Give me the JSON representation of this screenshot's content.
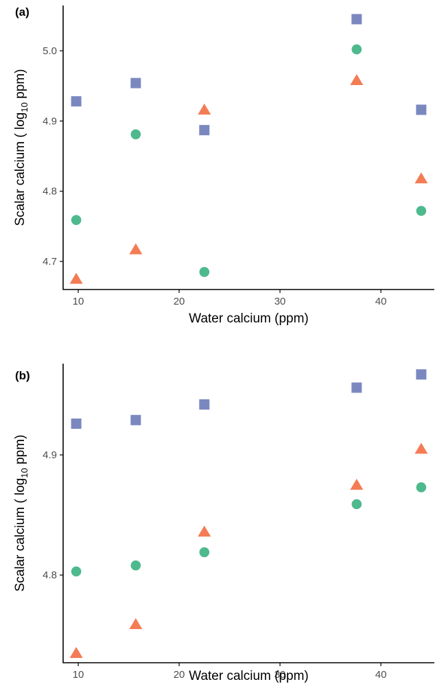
{
  "colors": {
    "square": "#7b88c0",
    "circle": "#4fb98e",
    "triangle": "#f47c55",
    "axis": "#000000",
    "tick_text": "#4d4d4d"
  },
  "chart_data": [
    {
      "type": "scatter",
      "panel_label": "(a)",
      "xlabel": "Water calcium (ppm)",
      "ylabel_main": "Scalar calcium ( log",
      "ylabel_sub": "10",
      "ylabel_end": " ppm)",
      "xlim": [
        8.5,
        45.3
      ],
      "ylim": [
        4.66,
        5.0645
      ],
      "x_ticks": [
        10,
        20,
        30,
        40
      ],
      "y_ticks": [
        4.7,
        4.8,
        4.9,
        5.0
      ],
      "x_tick_labels": [
        "10",
        "20",
        "30",
        "40"
      ],
      "y_tick_labels": [
        "4.7",
        "4.8",
        "4.9",
        "5.0"
      ],
      "grid": false,
      "series": [
        {
          "marker": "square",
          "points": [
            [
              9.8,
              4.928
            ],
            [
              15.7,
              4.954
            ],
            [
              22.5,
              4.887
            ],
            [
              37.6,
              5.045
            ],
            [
              44.0,
              4.916
            ]
          ]
        },
        {
          "marker": "circle",
          "points": [
            [
              9.8,
              4.759
            ],
            [
              15.7,
              4.881
            ],
            [
              22.5,
              4.685
            ],
            [
              37.6,
              5.002
            ],
            [
              44.0,
              4.772
            ]
          ]
        },
        {
          "marker": "triangle",
          "points": [
            [
              9.8,
              4.675
            ],
            [
              15.7,
              4.717
            ],
            [
              22.5,
              4.916
            ],
            [
              37.6,
              4.958
            ],
            [
              44.0,
              4.818
            ]
          ]
        }
      ]
    },
    {
      "type": "scatter",
      "panel_label": "(b)",
      "xlabel": "Water calcium (ppm)",
      "ylabel_main": "Scalar calcium ( log",
      "ylabel_sub": "10",
      "ylabel_end": " ppm)",
      "xlim": [
        8.5,
        45.3
      ],
      "ylim": [
        4.727,
        4.976
      ],
      "x_ticks": [
        10,
        20,
        30,
        40
      ],
      "y_ticks": [
        4.8,
        4.9
      ],
      "x_tick_labels": [
        "10",
        "20",
        "30",
        "40"
      ],
      "y_tick_labels": [
        "4.8",
        "4.9"
      ],
      "grid": false,
      "series": [
        {
          "marker": "square",
          "points": [
            [
              9.8,
              4.926
            ],
            [
              15.7,
              4.929
            ],
            [
              22.5,
              4.942
            ],
            [
              37.6,
              4.956
            ],
            [
              44.0,
              4.967
            ]
          ]
        },
        {
          "marker": "circle",
          "points": [
            [
              9.8,
              4.803
            ],
            [
              15.7,
              4.808
            ],
            [
              22.5,
              4.819
            ],
            [
              37.6,
              4.859
            ],
            [
              44.0,
              4.873
            ]
          ]
        },
        {
          "marker": "triangle",
          "points": [
            [
              9.8,
              4.735
            ],
            [
              15.7,
              4.759
            ],
            [
              22.5,
              4.836
            ],
            [
              37.6,
              4.875
            ],
            [
              44.0,
              4.905
            ]
          ]
        }
      ]
    }
  ]
}
